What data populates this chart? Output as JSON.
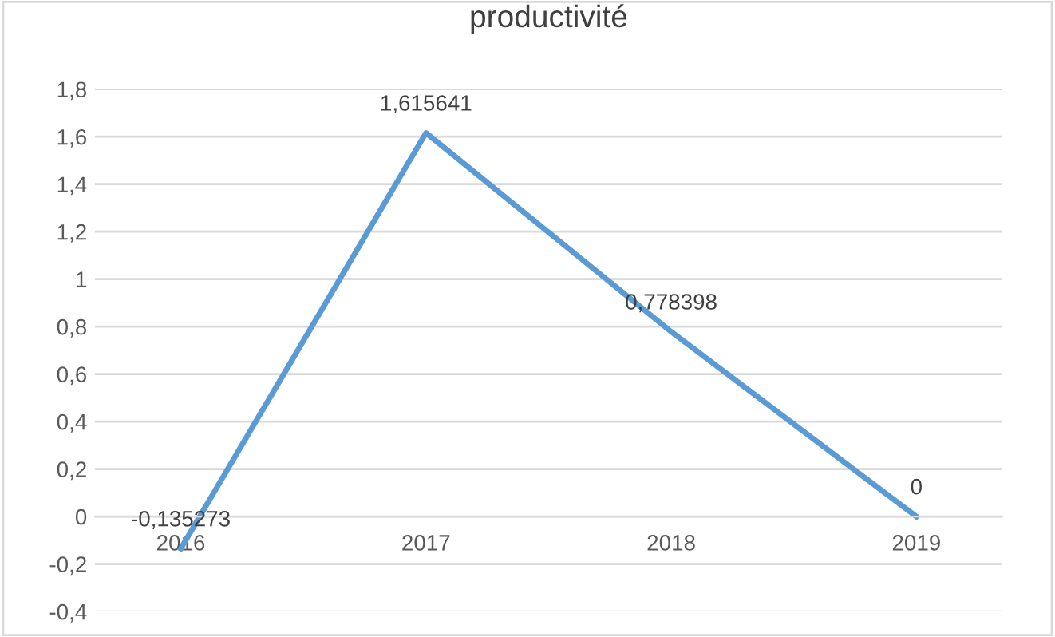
{
  "chart_data": {
    "type": "line",
    "title": "productivité",
    "categories": [
      "2016",
      "2017",
      "2018",
      "2019"
    ],
    "series": [
      {
        "color": "#5b9bd5",
        "values": [
          -0.135273,
          1.615641,
          0.778398,
          0
        ],
        "value_labels": [
          "-0,135273",
          "1,615641",
          "0,778398",
          "0"
        ]
      }
    ],
    "ylim": [
      -0.4,
      1.8
    ],
    "yticks": [
      {
        "value": -0.4,
        "label": "-0,4"
      },
      {
        "value": -0.2,
        "label": "-0,2"
      },
      0,
      {
        "value": 0.2,
        "label": "0,2"
      },
      {
        "value": 0.4,
        "label": "0,4"
      },
      {
        "value": 0.6,
        "label": "0,6"
      },
      {
        "value": 0.8,
        "label": "0,8"
      },
      1,
      {
        "value": 1.2,
        "label": "1,2"
      },
      {
        "value": 1.4,
        "label": "1,4"
      },
      {
        "value": 1.6,
        "label": "1,6"
      },
      {
        "value": 1.8,
        "label": "1,8"
      }
    ],
    "grid": "y",
    "marker": "none",
    "line_style": "solid"
  }
}
